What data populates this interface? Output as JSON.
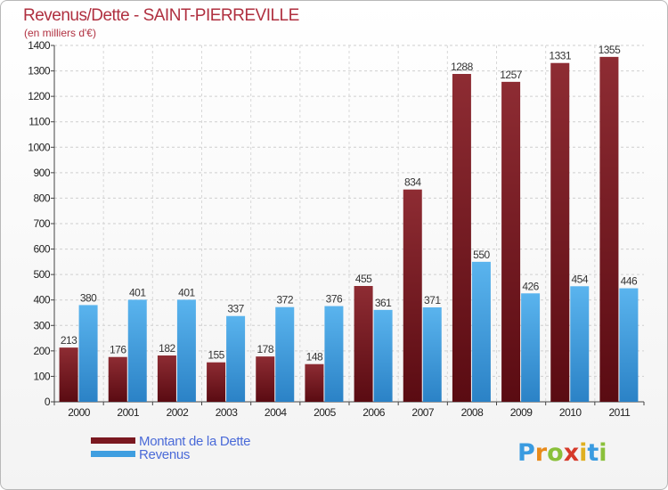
{
  "chart_data": {
    "type": "bar",
    "title": "Revenus/Dette - SAINT-PIERREVILLE",
    "subtitle": "(en milliers d'€)",
    "categories": [
      "2000",
      "2001",
      "2002",
      "2003",
      "2004",
      "2005",
      "2006",
      "2007",
      "2008",
      "2009",
      "2010",
      "2011"
    ],
    "series": [
      {
        "name": "Montant de la Dette",
        "color": "#7a1820",
        "values": [
          213,
          176,
          182,
          155,
          178,
          148,
          455,
          834,
          1288,
          1257,
          1331,
          1355
        ]
      },
      {
        "name": "Revenus",
        "color": "#3f9ee0",
        "values": [
          380,
          401,
          401,
          337,
          372,
          376,
          361,
          371,
          550,
          426,
          454,
          446
        ]
      }
    ],
    "ylim": [
      0,
      1400
    ],
    "yticks": [
      0,
      100,
      200,
      300,
      400,
      500,
      600,
      700,
      800,
      900,
      1000,
      1100,
      1200,
      1300,
      1400
    ],
    "grid": true,
    "legend_position": "bottom-left"
  },
  "logo": {
    "text": "Proxiti",
    "letters": [
      "P",
      "r",
      "o",
      "x",
      "i",
      "t",
      "i"
    ]
  }
}
